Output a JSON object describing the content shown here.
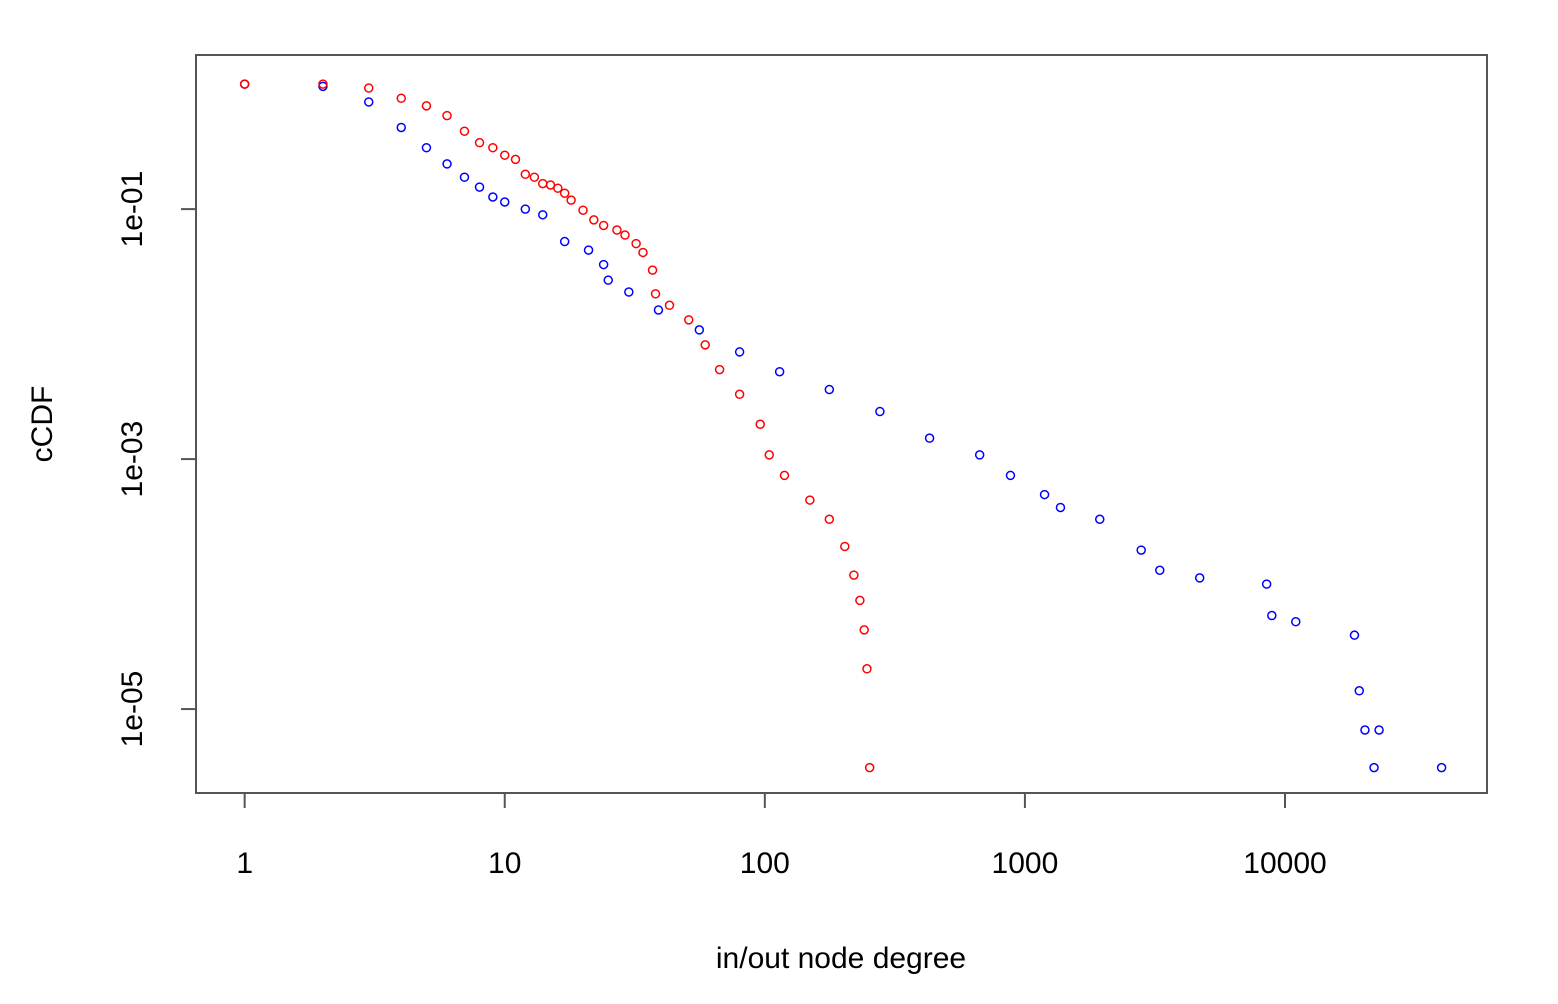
{
  "chart_data": {
    "type": "scatter",
    "xlabel": "in/out node degree",
    "ylabel": "cCDF",
    "xlog": true,
    "ylog": true,
    "xlim": [
      0.65,
      59800
    ],
    "ylim": [
      2.13e-06,
      1.71
    ],
    "xticks": [
      1,
      10,
      100,
      1000,
      10000
    ],
    "yticks": [
      {
        "value": 1e-05,
        "label": "1e-05"
      },
      {
        "value": 0.001,
        "label": "1e-03"
      },
      {
        "value": 0.1,
        "label": "1e-01"
      }
    ],
    "series": [
      {
        "color": "#0000ff",
        "x": [
          1,
          2,
          3,
          4,
          5,
          6,
          7,
          8,
          9,
          10,
          12,
          14,
          17,
          21,
          24,
          25,
          30,
          39,
          56,
          80,
          114,
          177,
          277,
          430,
          670,
          880,
          1190,
          1370,
          1940,
          2800,
          3300,
          4700,
          8500,
          8900,
          11000,
          18500,
          19300,
          20300,
          23000,
          22000,
          40000
        ],
        "values": [
          1.0,
          0.96,
          0.72,
          0.45,
          0.31,
          0.23,
          0.18,
          0.15,
          0.125,
          0.114,
          0.1,
          0.09,
          0.055,
          0.047,
          0.036,
          0.027,
          0.0217,
          0.0156,
          0.0108,
          0.0072,
          0.005,
          0.0036,
          0.0024,
          0.00147,
          0.00108,
          0.00074,
          0.00052,
          0.00041,
          0.00033,
          0.000187,
          0.000129,
          0.000112,
          0.0001,
          5.6e-05,
          5e-05,
          3.9e-05,
          1.4e-05,
          6.8e-06,
          6.8e-06,
          3.4e-06,
          3.4e-06
        ]
      },
      {
        "color": "#ff0000",
        "x": [
          1,
          2,
          3,
          4,
          5,
          6,
          7,
          8,
          9,
          10,
          11,
          12,
          13,
          14,
          15,
          16,
          17,
          18,
          20,
          22,
          24,
          27,
          29,
          32,
          34,
          37,
          38,
          43,
          51,
          59,
          67,
          80,
          96,
          104,
          119,
          149,
          177,
          203,
          220,
          232,
          241,
          247,
          253
        ],
        "values": [
          1.0,
          1.0,
          0.93,
          0.77,
          0.67,
          0.56,
          0.42,
          0.34,
          0.31,
          0.27,
          0.25,
          0.19,
          0.18,
          0.16,
          0.156,
          0.147,
          0.134,
          0.118,
          0.098,
          0.082,
          0.074,
          0.068,
          0.062,
          0.053,
          0.045,
          0.0325,
          0.021,
          0.017,
          0.013,
          0.0082,
          0.0052,
          0.0033,
          0.0019,
          0.00108,
          0.00074,
          0.00047,
          0.00033,
          0.0002,
          0.000118,
          7.4e-05,
          4.3e-05,
          2.1e-05,
          3.4e-06
        ]
      }
    ]
  }
}
